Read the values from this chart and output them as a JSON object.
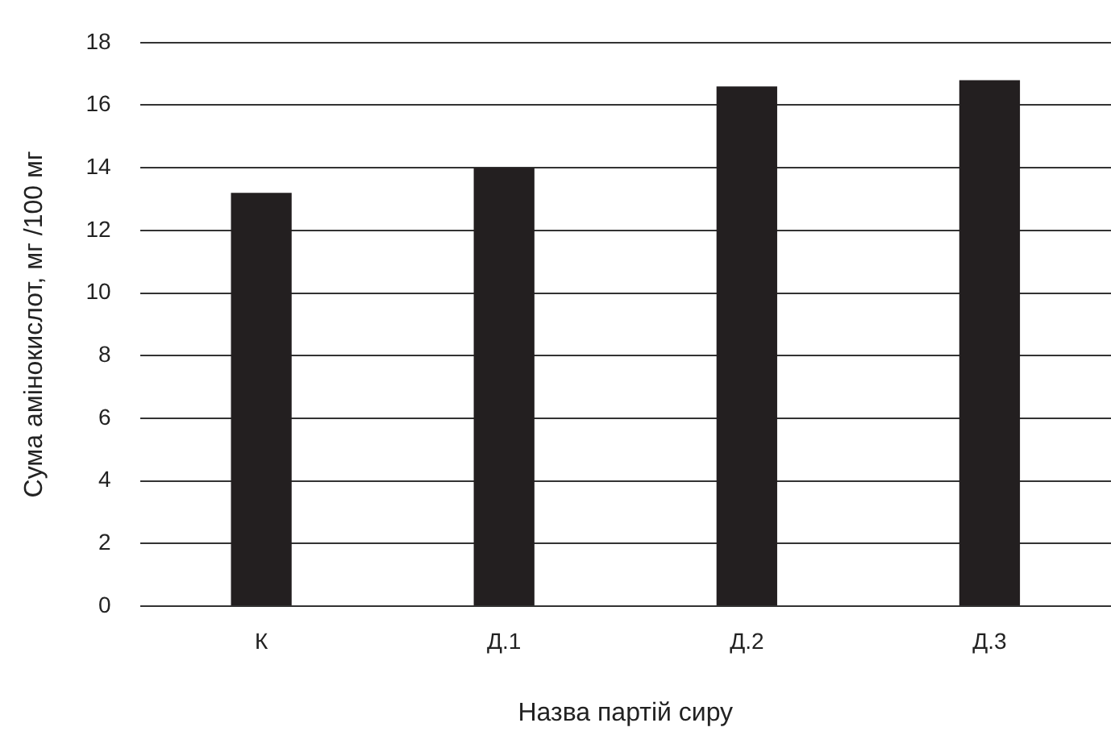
{
  "chart_data": {
    "type": "bar",
    "xlabel": "Назва партій сиру",
    "ylabel": "Сума амінокислот, мг /100 мг",
    "categories": [
      "К",
      "Д.1",
      "Д.2",
      "Д.3"
    ],
    "values": [
      13.2,
      14.0,
      16.6,
      16.8
    ],
    "color": "#231f20",
    "ylim": [
      0,
      18
    ],
    "yticks": [
      0,
      2,
      4,
      6,
      8,
      10,
      12,
      14,
      16,
      18
    ],
    "grid": "y",
    "legend": false
  }
}
